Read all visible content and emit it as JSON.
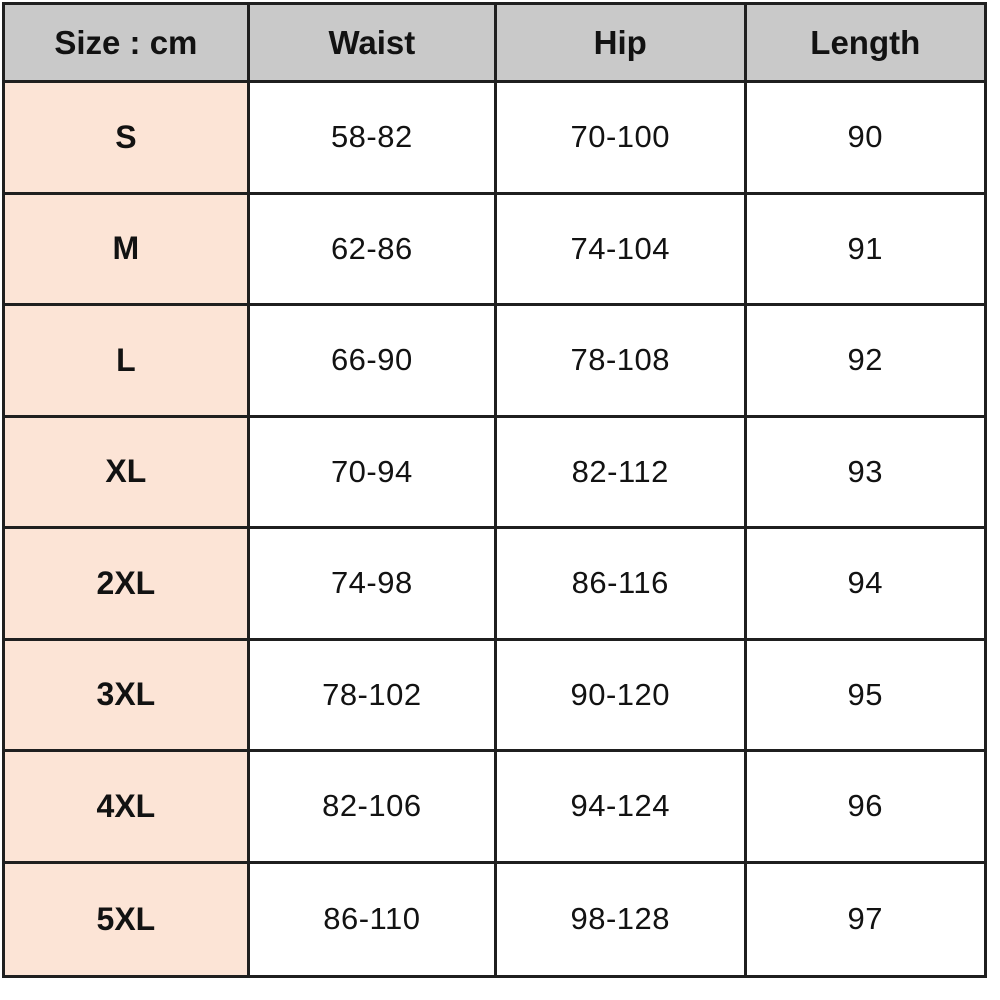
{
  "table": {
    "headers": [
      "Size : cm",
      "Waist",
      "Hip",
      "Length"
    ],
    "rows": [
      {
        "size": "S",
        "waist": "58-82",
        "hip": "70-100",
        "length": "90"
      },
      {
        "size": "M",
        "waist": "62-86",
        "hip": "74-104",
        "length": "91"
      },
      {
        "size": "L",
        "waist": "66-90",
        "hip": "78-108",
        "length": "92"
      },
      {
        "size": "XL",
        "waist": "70-94",
        "hip": "82-112",
        "length": "93"
      },
      {
        "size": "2XL",
        "waist": "74-98",
        "hip": "86-116",
        "length": "94"
      },
      {
        "size": "3XL",
        "waist": "78-102",
        "hip": "90-120",
        "length": "95"
      },
      {
        "size": "4XL",
        "waist": "82-106",
        "hip": "94-124",
        "length": "96"
      },
      {
        "size": "5XL",
        "waist": "86-110",
        "hip": "98-128",
        "length": "97"
      }
    ]
  },
  "colors": {
    "header_bg": "#c9c9c9",
    "size_column_bg": "#fce4d6",
    "cell_bg": "#ffffff",
    "border": "#1f1f1f",
    "text": "#121212"
  },
  "chart_data": {
    "type": "table",
    "title": "Size : cm",
    "columns": [
      "Size : cm",
      "Waist",
      "Hip",
      "Length"
    ],
    "rows": [
      [
        "S",
        "58-82",
        "70-100",
        "90"
      ],
      [
        "M",
        "62-86",
        "74-104",
        "91"
      ],
      [
        "L",
        "66-90",
        "78-108",
        "92"
      ],
      [
        "XL",
        "70-94",
        "82-112",
        "93"
      ],
      [
        "2XL",
        "74-98",
        "86-116",
        "94"
      ],
      [
        "3XL",
        "78-102",
        "90-120",
        "95"
      ],
      [
        "4XL",
        "82-106",
        "94-124",
        "96"
      ],
      [
        "5XL",
        "86-110",
        "98-128",
        "97"
      ]
    ],
    "units": "cm",
    "layout_hints": {
      "header_row_shaded": true,
      "first_column_shaded": true,
      "grid": true
    }
  }
}
